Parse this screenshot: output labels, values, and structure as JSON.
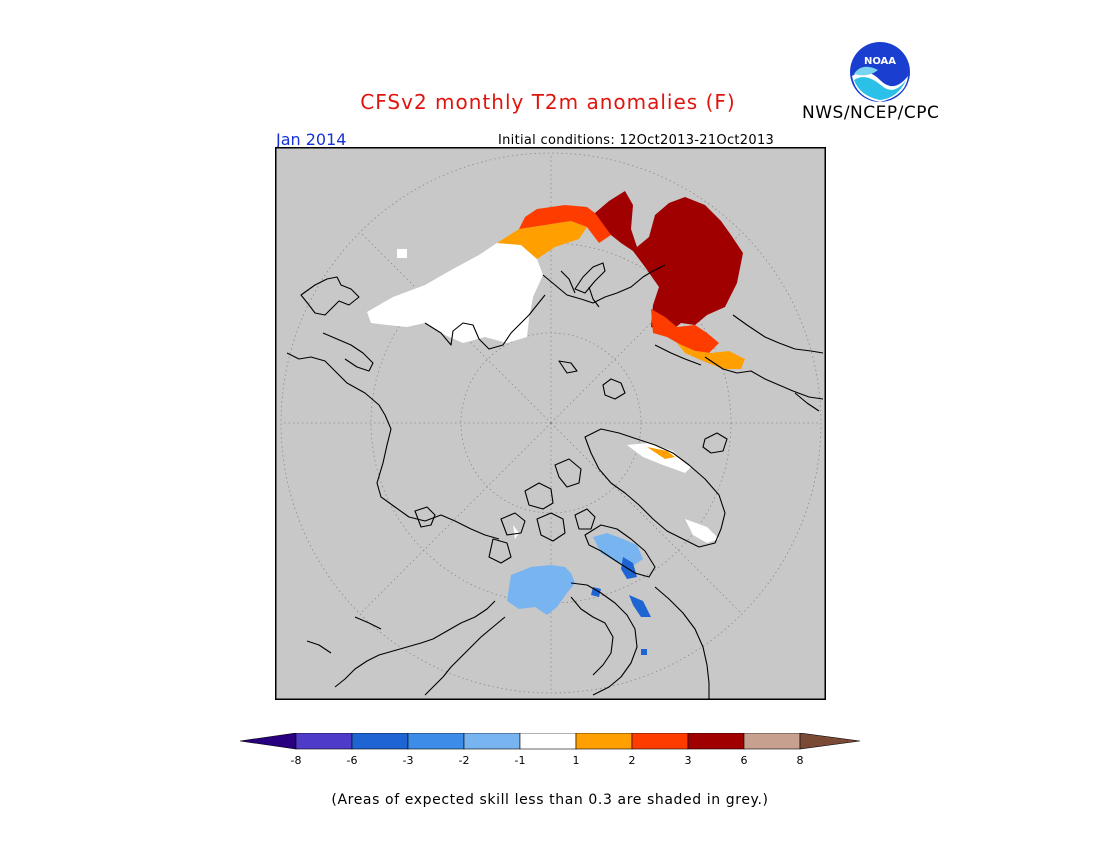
{
  "header": {
    "title": "CFSv2 monthly T2m anomalies (F)",
    "agency": "NWS/NCEP/CPC",
    "logo_text": "NOAA",
    "period": "Jan 2014",
    "initial_conditions": "Initial conditions: 12Oct2013-21Oct2013"
  },
  "map": {
    "projection": "north-polar-stereographic",
    "background_color": "#c8c8c8",
    "grey_meaning": "skill less than 0.3"
  },
  "legend": {
    "colors": [
      "#28007f",
      "#4e3cc8",
      "#1e64d2",
      "#3c8ce8",
      "#78b4f0",
      "#ffffff",
      "#ffa000",
      "#ff3c00",
      "#a00000",
      "#c8a090",
      "#7a4a35"
    ],
    "ticks": [
      "-8",
      "-6",
      "-3",
      "-2",
      "-1",
      "1",
      "2",
      "3",
      "6",
      "8"
    ]
  },
  "footnote": "(Areas of expected skill less than 0.3 are shaded in grey.)"
}
